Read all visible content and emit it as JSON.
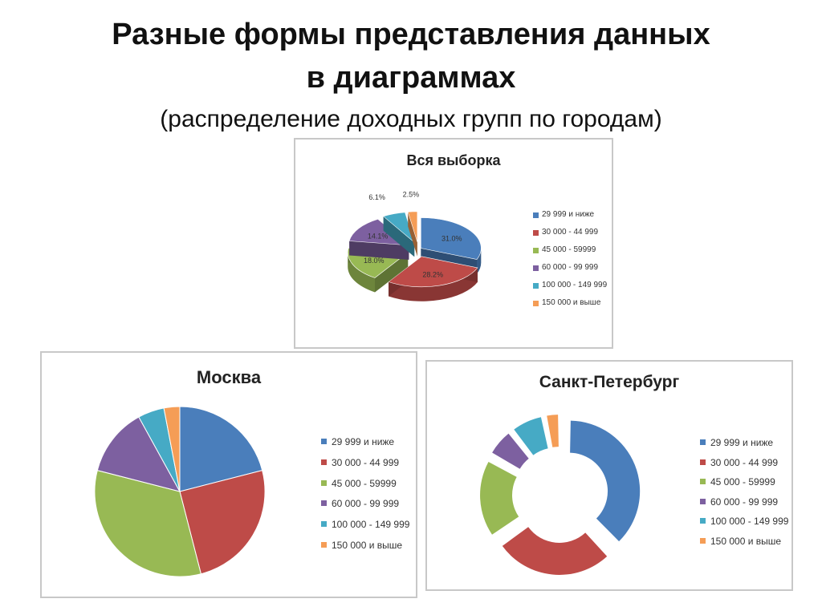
{
  "slide": {
    "title_line1": "Разные формы представления данных",
    "title_line2": "в диаграммах",
    "subtitle": "(распределение доходных групп по городам)"
  },
  "colors": [
    "#4a7ebb",
    "#be4b48",
    "#98b954",
    "#7d60a0",
    "#46aac5",
    "#f59d56"
  ],
  "legend_position": "right",
  "chart_data": [
    {
      "type": "pie",
      "variant": "3d-exploded",
      "title": "Вся выборка",
      "categories": [
        "29 999 и ниже",
        "30 000 - 44 999",
        "45 000 - 59999",
        "60 000 - 99 999",
        "100 000 - 149 999",
        "150 000 и выше"
      ],
      "values": [
        31.0,
        28.2,
        18.0,
        14.1,
        6.1,
        2.5
      ],
      "data_labels": [
        "31.0%",
        "28.2%",
        "18.0%",
        "14.1%",
        "6.1%",
        "2.5%"
      ]
    },
    {
      "type": "pie",
      "title": "Москва",
      "categories": [
        "29 999 и ниже",
        "30 000 - 44 999",
        "45 000 - 59999",
        "60 000 - 99 999",
        "100 000 - 149 999",
        "150 000 и выше"
      ],
      "values": [
        21,
        25,
        33,
        13,
        5,
        3
      ]
    },
    {
      "type": "doughnut",
      "variant": "exploded",
      "title": "Санкт-Петербург",
      "categories": [
        "29 999 и ниже",
        "30 000 - 44 999",
        "45 000 - 59999",
        "60 000 - 99 999",
        "100 000 - 149 999",
        "150 000 и выше"
      ],
      "values": [
        36,
        26,
        17,
        6,
        7,
        3
      ]
    }
  ]
}
